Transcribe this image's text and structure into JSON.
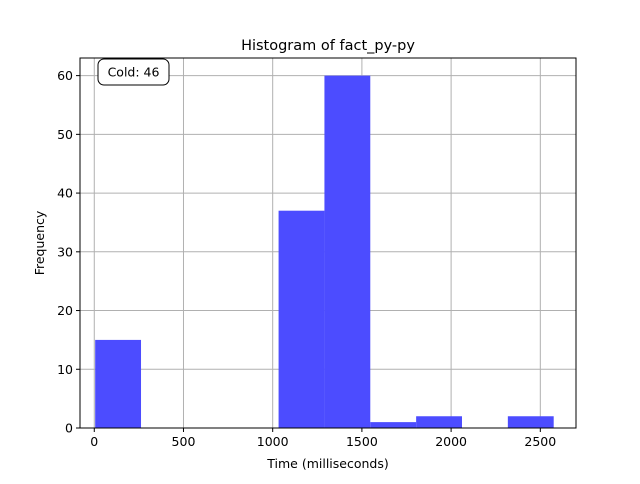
{
  "chart_data": {
    "type": "bar",
    "title": "Histogram of fact_py-py",
    "xlabel": "Time (milliseconds)",
    "ylabel": "Frequency",
    "xlim": [
      -80,
      2700
    ],
    "ylim": [
      0,
      63
    ],
    "xticks": [
      0,
      500,
      1000,
      1500,
      2000,
      2500
    ],
    "yticks": [
      0,
      10,
      20,
      30,
      40,
      50,
      60
    ],
    "grid": true,
    "bar_color": "#4c4cff",
    "bins": [
      {
        "start": 5,
        "end": 262,
        "count": 15
      },
      {
        "start": 262,
        "end": 519,
        "count": 0
      },
      {
        "start": 519,
        "end": 776,
        "count": 0
      },
      {
        "start": 776,
        "end": 1033,
        "count": 0
      },
      {
        "start": 1033,
        "end": 1290,
        "count": 37
      },
      {
        "start": 1290,
        "end": 1547,
        "count": 60
      },
      {
        "start": 1547,
        "end": 1804,
        "count": 1
      },
      {
        "start": 1804,
        "end": 2061,
        "count": 2
      },
      {
        "start": 2061,
        "end": 2318,
        "count": 0
      },
      {
        "start": 2318,
        "end": 2575,
        "count": 2
      }
    ],
    "annotation": "Cold: 46"
  }
}
